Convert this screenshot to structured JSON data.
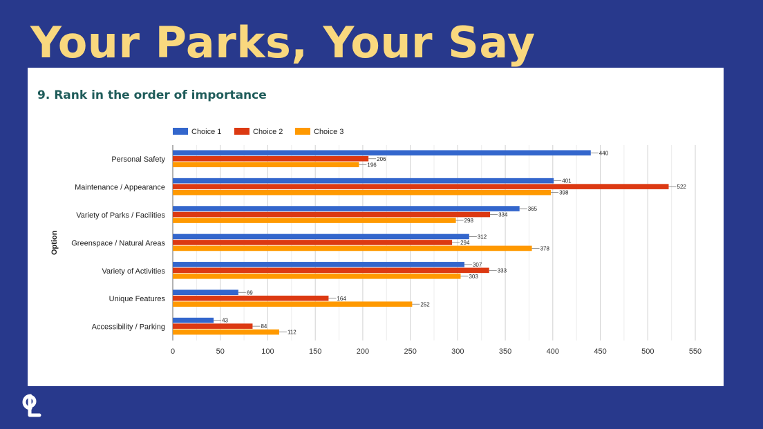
{
  "slide": {
    "title": "Your Parks, Your Say"
  },
  "chart_data": {
    "type": "bar",
    "orientation": "horizontal",
    "title": "9. Rank in the order of importance",
    "xlabel": "",
    "ylabel": "Option",
    "xlim": [
      0,
      550
    ],
    "xticks": [
      0,
      50,
      100,
      150,
      200,
      250,
      300,
      350,
      400,
      450,
      500,
      550
    ],
    "grid": true,
    "legend_position": "top-left",
    "categories": [
      "Personal Safety",
      "Maintenance / Appearance",
      "Variety of Parks / Facilities",
      "Greenspace / Natural Areas",
      "Variety of Activities",
      "Unique Features",
      "Accessibility / Parking"
    ],
    "series": [
      {
        "name": "Choice 1",
        "color": "#3366cc",
        "values": [
          440,
          401,
          365,
          312,
          307,
          69,
          43
        ]
      },
      {
        "name": "Choice 2",
        "color": "#dc3912",
        "values": [
          206,
          522,
          334,
          294,
          333,
          164,
          84
        ]
      },
      {
        "name": "Choice 3",
        "color": "#ff9900",
        "values": [
          196,
          398,
          298,
          378,
          303,
          252,
          112
        ]
      }
    ]
  },
  "colors": {
    "background": "#28398c",
    "title": "#f9d87e",
    "heading": "#1f5c5a"
  },
  "logo": {
    "icon": "cpl-logo-icon"
  }
}
